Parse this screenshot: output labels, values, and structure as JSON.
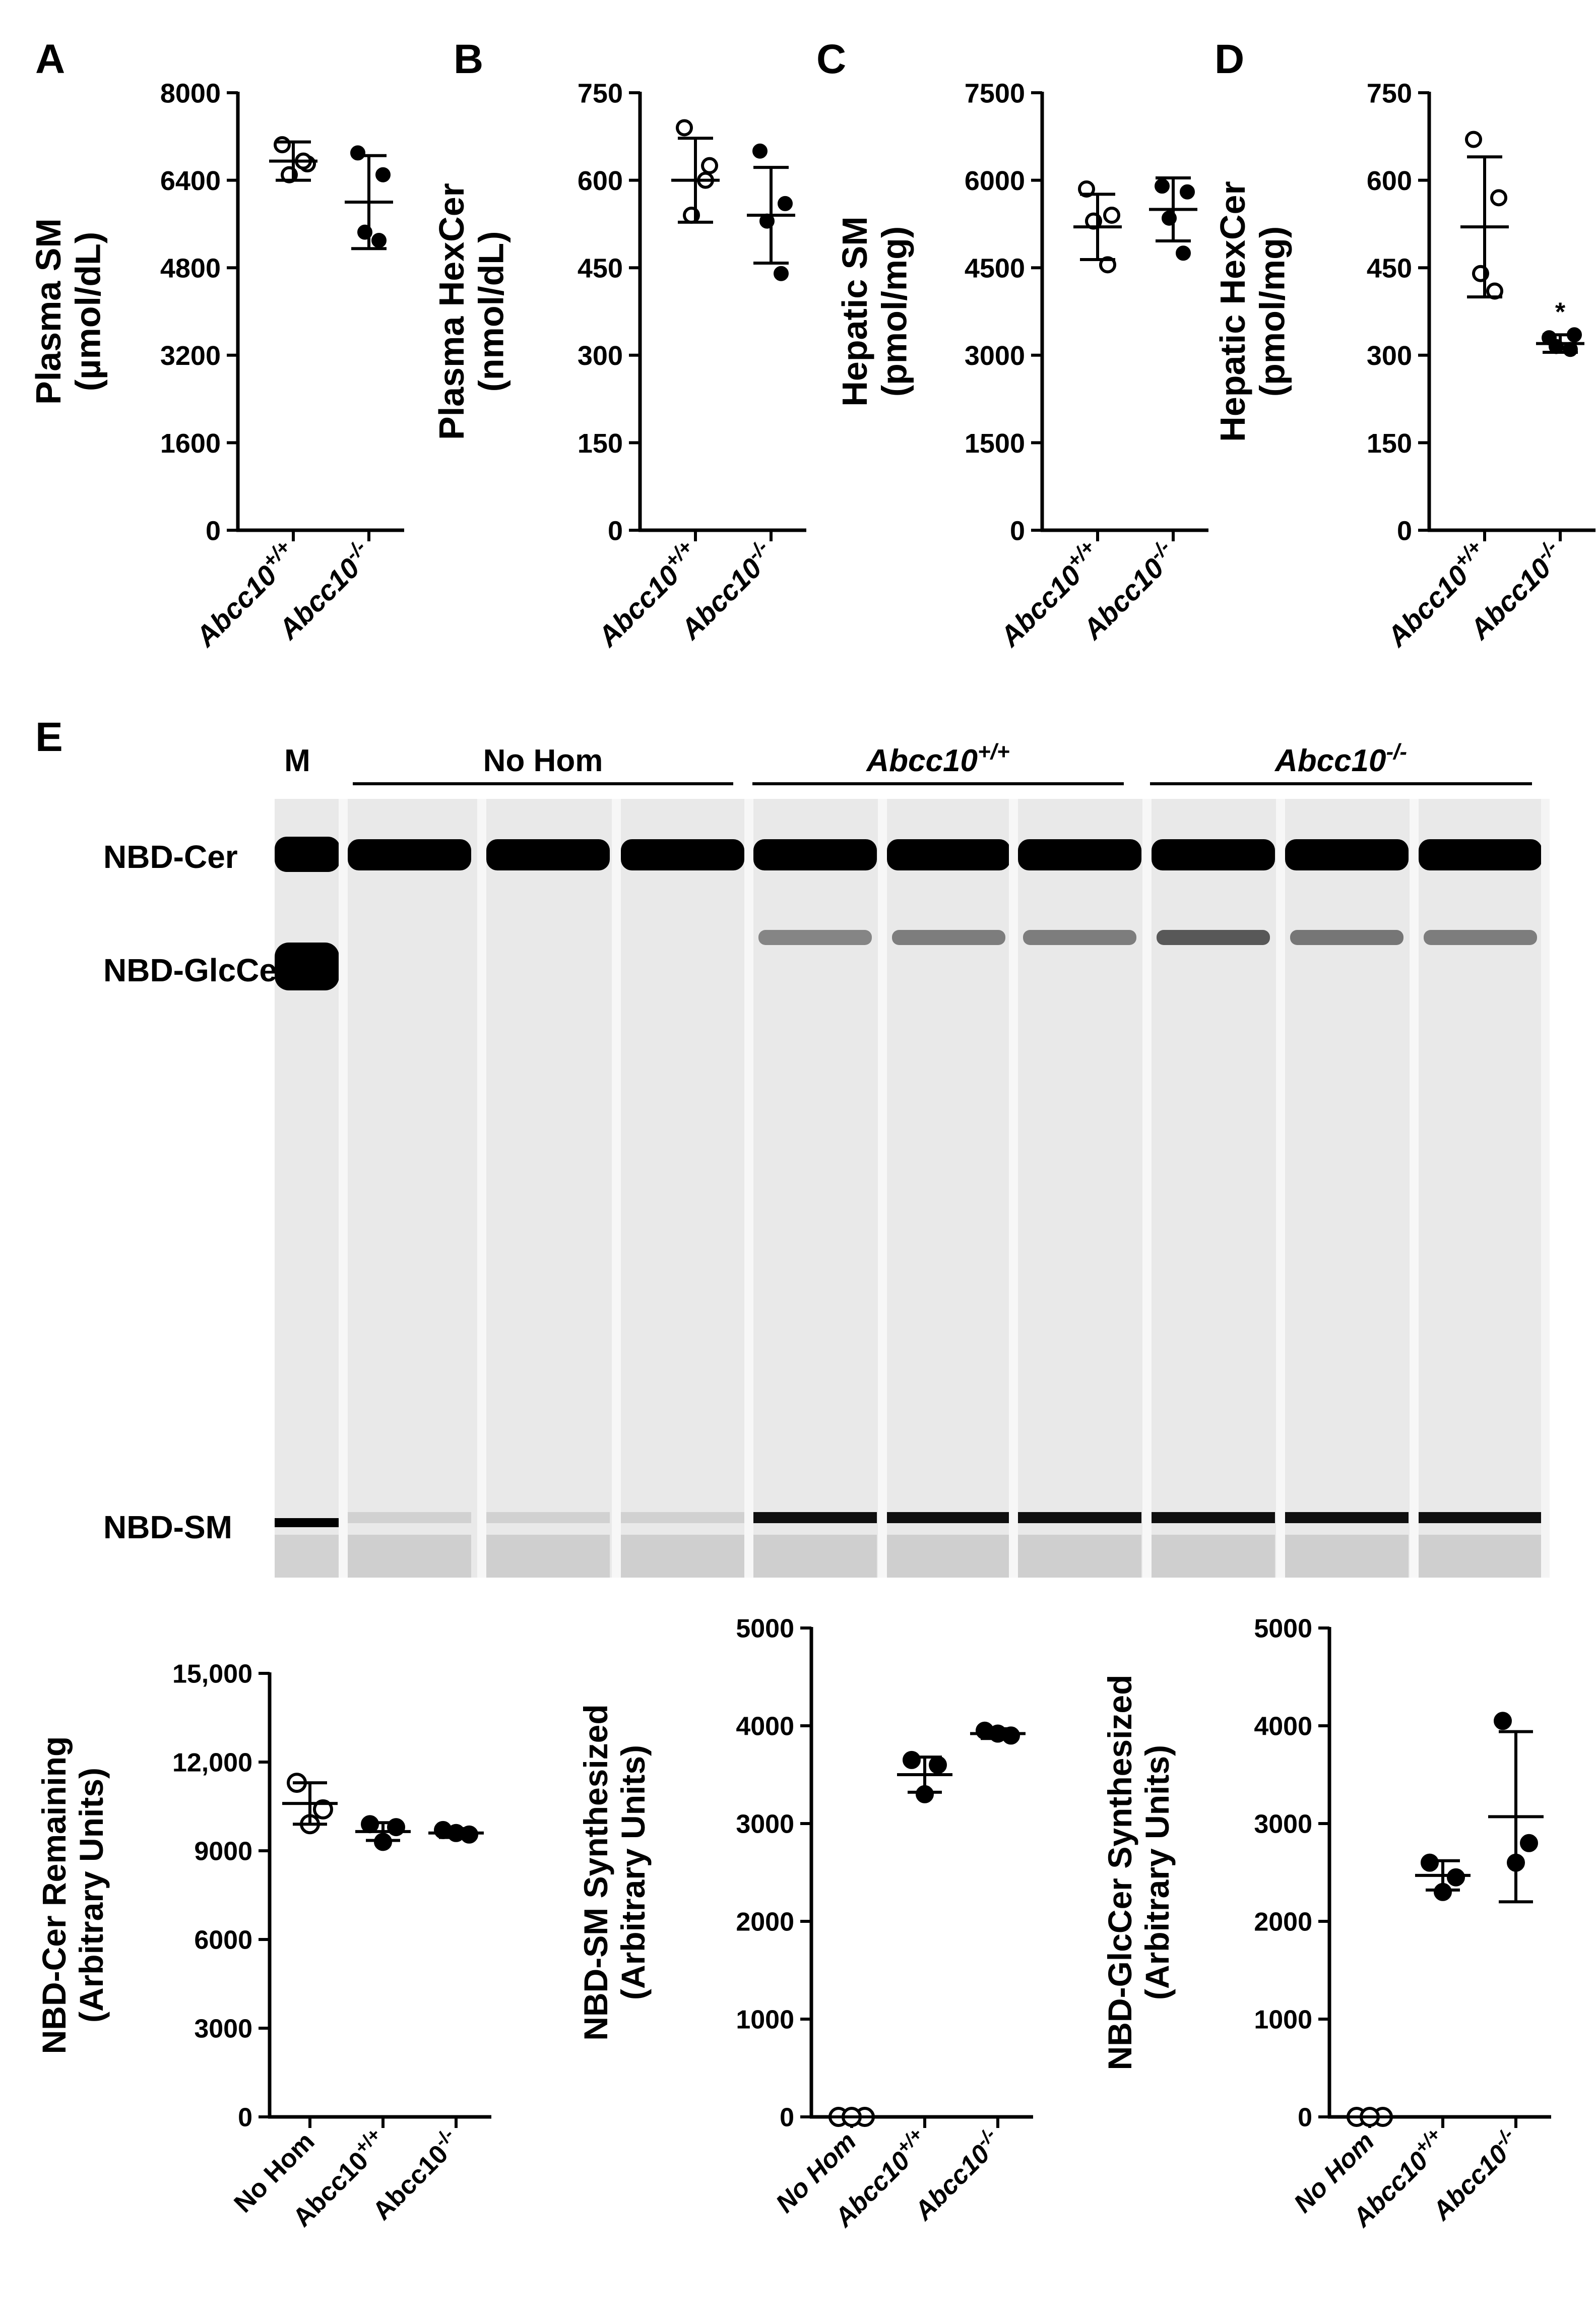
{
  "figure": {
    "panel_letters": [
      "A",
      "B",
      "C",
      "D",
      "E"
    ],
    "colors": {
      "ink": "#000000",
      "paper": "#ffffff",
      "gel_bg": "#e9e9e9",
      "lane_band": "#111111"
    }
  },
  "top_charts": [
    {
      "letter": "A",
      "ylabel_lines": [
        "Plasma SM",
        "(µmol/dL)"
      ],
      "yticks": [
        "0",
        "1600",
        "3200",
        "4800",
        "6400",
        "8000"
      ],
      "ymax": 8000,
      "groups": [
        {
          "label_main": "Abcc10",
          "label_sup": "+/+",
          "filled": false,
          "mean": 6750,
          "sd": 350,
          "points": [
            7050,
            6700,
            6500,
            6750
          ]
        },
        {
          "label_main": "Abcc10",
          "label_sup": "-/-",
          "filled": true,
          "mean": 6000,
          "sd": 850,
          "points": [
            6900,
            6500,
            5450,
            5300
          ]
        }
      ],
      "annotations": []
    },
    {
      "letter": "B",
      "ylabel_lines": [
        "Plasma HexCer",
        "(nmol/dL)"
      ],
      "yticks": [
        "0",
        "150",
        "300",
        "450",
        "600",
        "750"
      ],
      "ymax": 750,
      "groups": [
        {
          "label_main": "Abcc10",
          "label_sup": "+/+",
          "filled": false,
          "mean": 600,
          "sd": 72,
          "points": [
            690,
            625,
            540,
            600
          ]
        },
        {
          "label_main": "Abcc10",
          "label_sup": "-/-",
          "filled": true,
          "mean": 540,
          "sd": 82,
          "points": [
            650,
            560,
            530,
            440
          ]
        }
      ],
      "annotations": []
    },
    {
      "letter": "C",
      "ylabel_lines": [
        "Hepatic SM",
        "(pmol/mg)"
      ],
      "yticks": [
        "0",
        "1500",
        "3000",
        "4500",
        "6000",
        "7500"
      ],
      "ymax": 7500,
      "groups": [
        {
          "label_main": "Abcc10",
          "label_sup": "+/+",
          "filled": false,
          "mean": 5200,
          "sd": 560,
          "points": [
            5850,
            5400,
            5300,
            4550
          ]
        },
        {
          "label_main": "Abcc10",
          "label_sup": "-/-",
          "filled": true,
          "mean": 5500,
          "sd": 540,
          "points": [
            5900,
            5800,
            5350,
            4750
          ]
        }
      ],
      "annotations": []
    },
    {
      "letter": "D",
      "ylabel_lines": [
        "Hepatic HexCer",
        "(pmol/mg)"
      ],
      "yticks": [
        "0",
        "150",
        "300",
        "450",
        "600",
        "750"
      ],
      "ymax": 750,
      "groups": [
        {
          "label_main": "Abcc10",
          "label_sup": "+/+",
          "filled": false,
          "mean": 520,
          "sd": 120,
          "points": [
            670,
            570,
            440,
            410
          ]
        },
        {
          "label_main": "Abcc10",
          "label_sup": "-/-",
          "filled": true,
          "mean": 320,
          "sd": 15,
          "points": [
            330,
            335,
            315,
            310
          ]
        }
      ],
      "annotations": [
        "*"
      ]
    }
  ],
  "gel": {
    "letter": "E",
    "marker_label": "M",
    "group_labels": [
      {
        "main": "No Hom",
        "sup": "",
        "italic": false
      },
      {
        "main": "Abcc10",
        "sup": "+/+",
        "italic": true
      },
      {
        "main": "Abcc10",
        "sup": "-/-",
        "italic": true
      }
    ],
    "band_labels": [
      "NBD-Cer",
      "NBD-GlcCer",
      "NBD-SM"
    ],
    "lane_glccer_intensity": [
      0,
      0,
      0,
      0.45,
      0.5,
      0.5,
      0.75,
      0.55,
      0.5
    ],
    "lane_sm_intensity": [
      0.1,
      0.1,
      0.1,
      1,
      1,
      1,
      1,
      1,
      1
    ]
  },
  "bottom_charts": [
    {
      "ylabel_lines": [
        "NBD-Cer Remaining",
        "(Arbitrary Units)"
      ],
      "yticks": [
        "0",
        "3000",
        "6000",
        "9000",
        "12,000",
        "15,000"
      ],
      "ymax": 15000,
      "italic_xlabels": false,
      "groups": [
        {
          "label_main": "No Hom",
          "label_sup": "",
          "filled": false,
          "mean": 10600,
          "sd": 700,
          "points": [
            11300,
            10400,
            9900
          ]
        },
        {
          "label_main": "Abcc10",
          "label_sup": "+/+",
          "filled": true,
          "mean": 9650,
          "sd": 300,
          "points": [
            9900,
            9800,
            9300
          ]
        },
        {
          "label_main": "Abcc10",
          "label_sup": "-/-",
          "filled": true,
          "mean": 9600,
          "sd": 150,
          "points": [
            9700,
            9550,
            9600
          ]
        }
      ]
    },
    {
      "ylabel_lines": [
        "NBD-SM Synthesized",
        "(Arbitrary Units)"
      ],
      "yticks": [
        "0",
        "1000",
        "2000",
        "3000",
        "4000",
        "5000"
      ],
      "ymax": 5000,
      "italic_xlabels": true,
      "groups": [
        {
          "label_main": "No Hom",
          "label_sup": "",
          "filled": false,
          "mean": 0,
          "sd": 0,
          "points": [
            0,
            0,
            0
          ]
        },
        {
          "label_main": "Abcc10",
          "label_sup": "+/+",
          "filled": true,
          "mean": 3500,
          "sd": 180,
          "points": [
            3650,
            3600,
            3300
          ]
        },
        {
          "label_main": "Abcc10",
          "label_sup": "-/-",
          "filled": true,
          "mean": 3920,
          "sd": 50,
          "points": [
            3950,
            3900,
            3920
          ]
        }
      ]
    },
    {
      "ylabel_lines": [
        "NBD-GlcCer Synthesized",
        "(Arbitrary Units)"
      ],
      "yticks": [
        "0",
        "1000",
        "2000",
        "3000",
        "4000",
        "5000"
      ],
      "ymax": 5000,
      "italic_xlabels": true,
      "groups": [
        {
          "label_main": "No Hom",
          "label_sup": "",
          "filled": false,
          "mean": 0,
          "sd": 0,
          "points": [
            0,
            0,
            0
          ]
        },
        {
          "label_main": "Abcc10",
          "label_sup": "+/+",
          "filled": true,
          "mean": 2470,
          "sd": 150,
          "points": [
            2600,
            2450,
            2300
          ]
        },
        {
          "label_main": "Abcc10",
          "label_sup": "-/-",
          "filled": true,
          "mean": 3070,
          "sd": 870,
          "points": [
            4050,
            2800,
            2600
          ]
        }
      ]
    }
  ],
  "chart_data": [
    {
      "type": "scatter",
      "ylabel": "Plasma SM (µmol/dL)",
      "ylim": [
        0,
        8000
      ],
      "categories": [
        "Abcc10+/+",
        "Abcc10-/-"
      ],
      "series": [
        {
          "values": [
            [
              7050,
              6700,
              6500,
              6750
            ],
            [
              6900,
              6500,
              5450,
              5300
            ]
          ]
        }
      ],
      "means": [
        6750,
        6000
      ],
      "sd": [
        350,
        850
      ]
    },
    {
      "type": "scatter",
      "ylabel": "Plasma HexCer (nmol/dL)",
      "ylim": [
        0,
        750
      ],
      "categories": [
        "Abcc10+/+",
        "Abcc10-/-"
      ],
      "series": [
        {
          "values": [
            [
              690,
              625,
              540,
              600
            ],
            [
              650,
              560,
              530,
              440
            ]
          ]
        }
      ],
      "means": [
        600,
        540
      ],
      "sd": [
        72,
        82
      ]
    },
    {
      "type": "scatter",
      "ylabel": "Hepatic SM (pmol/mg)",
      "ylim": [
        0,
        7500
      ],
      "categories": [
        "Abcc10+/+",
        "Abcc10-/-"
      ],
      "series": [
        {
          "values": [
            [
              5850,
              5400,
              5300,
              4550
            ],
            [
              5900,
              5800,
              5350,
              4750
            ]
          ]
        }
      ],
      "means": [
        5200,
        5500
      ],
      "sd": [
        560,
        540
      ]
    },
    {
      "type": "scatter",
      "ylabel": "Hepatic HexCer (pmol/mg)",
      "ylim": [
        0,
        750
      ],
      "categories": [
        "Abcc10+/+",
        "Abcc10-/-"
      ],
      "series": [
        {
          "values": [
            [
              670,
              570,
              440,
              410
            ],
            [
              330,
              335,
              315,
              310
            ]
          ]
        }
      ],
      "means": [
        520,
        320
      ],
      "sd": [
        120,
        15
      ],
      "annotations": [
        "*"
      ]
    },
    {
      "type": "scatter",
      "ylabel": "NBD-Cer Remaining (Arbitrary Units)",
      "ylim": [
        0,
        15000
      ],
      "categories": [
        "No Hom",
        "Abcc10+/+",
        "Abcc10-/-"
      ],
      "series": [
        {
          "values": [
            [
              11300,
              10400,
              9900
            ],
            [
              9900,
              9800,
              9300
            ],
            [
              9700,
              9550,
              9600
            ]
          ]
        }
      ],
      "means": [
        10600,
        9650,
        9600
      ]
    },
    {
      "type": "scatter",
      "ylabel": "NBD-SM Synthesized (Arbitrary Units)",
      "ylim": [
        0,
        5000
      ],
      "categories": [
        "No Hom",
        "Abcc10+/+",
        "Abcc10-/-"
      ],
      "series": [
        {
          "values": [
            [
              0,
              0,
              0
            ],
            [
              3650,
              3600,
              3300
            ],
            [
              3950,
              3900,
              3920
            ]
          ]
        }
      ],
      "means": [
        0,
        3500,
        3920
      ]
    },
    {
      "type": "scatter",
      "ylabel": "NBD-GlcCer Synthesized (Arbitrary Units)",
      "ylim": [
        0,
        5000
      ],
      "categories": [
        "No Hom",
        "Abcc10+/+",
        "Abcc10-/-"
      ],
      "series": [
        {
          "values": [
            [
              0,
              0,
              0
            ],
            [
              2600,
              2450,
              2300
            ],
            [
              4050,
              2800,
              2600
            ]
          ]
        }
      ],
      "means": [
        0,
        2470,
        3070
      ]
    }
  ]
}
